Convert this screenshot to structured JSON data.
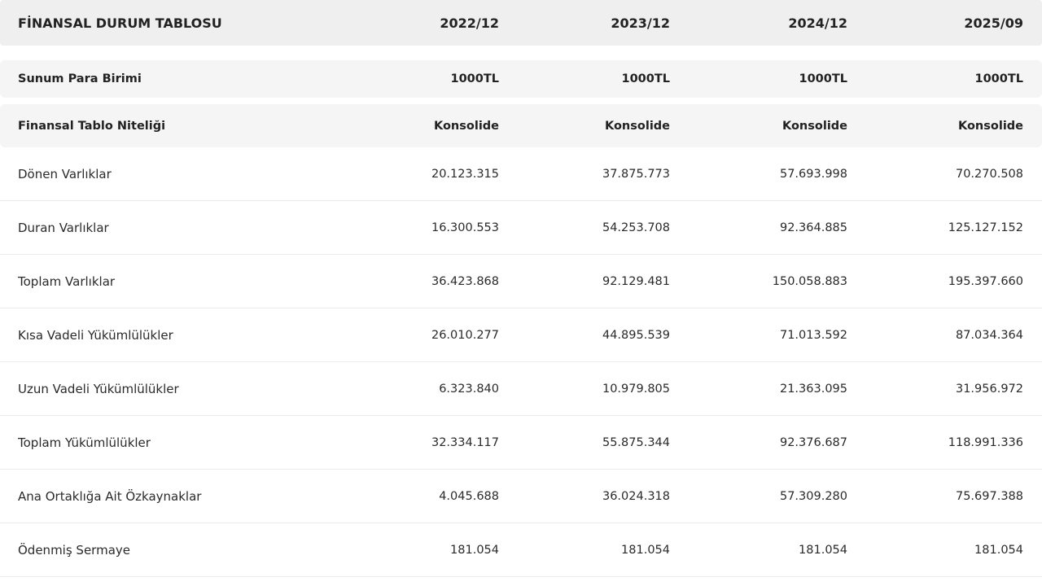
{
  "header": {
    "title": "FİNANSAL DURUM TABLOSU",
    "periods": [
      "2022/12",
      "2023/12",
      "2024/12",
      "2025/09"
    ]
  },
  "meta": [
    {
      "label": "Sunum Para Birimi",
      "values": [
        "1000TL",
        "1000TL",
        "1000TL",
        "1000TL"
      ]
    },
    {
      "label": "Finansal Tablo Niteliği",
      "values": [
        "Konsolide",
        "Konsolide",
        "Konsolide",
        "Konsolide"
      ]
    }
  ],
  "rows": [
    {
      "label": "Dönen Varlıklar",
      "values": [
        "20.123.315",
        "37.875.773",
        "57.693.998",
        "70.270.508"
      ]
    },
    {
      "label": "Duran Varlıklar",
      "values": [
        "16.300.553",
        "54.253.708",
        "92.364.885",
        "125.127.152"
      ]
    },
    {
      "label": "Toplam Varlıklar",
      "values": [
        "36.423.868",
        "92.129.481",
        "150.058.883",
        "195.397.660"
      ]
    },
    {
      "label": "Kısa Vadeli Yükümlülükler",
      "values": [
        "26.010.277",
        "44.895.539",
        "71.013.592",
        "87.034.364"
      ]
    },
    {
      "label": "Uzun Vadeli Yükümlülükler",
      "values": [
        "6.323.840",
        "10.979.805",
        "21.363.095",
        "31.956.972"
      ]
    },
    {
      "label": "Toplam Yükümlülükler",
      "values": [
        "32.334.117",
        "55.875.344",
        "92.376.687",
        "118.991.336"
      ]
    },
    {
      "label": "Ana Ortaklığa Ait Özkaynaklar",
      "values": [
        "4.045.688",
        "36.024.318",
        "57.309.280",
        "75.697.388"
      ]
    },
    {
      "label": "Ödenmiş Sermaye",
      "values": [
        "181.054",
        "181.054",
        "181.054",
        "181.054"
      ]
    }
  ]
}
